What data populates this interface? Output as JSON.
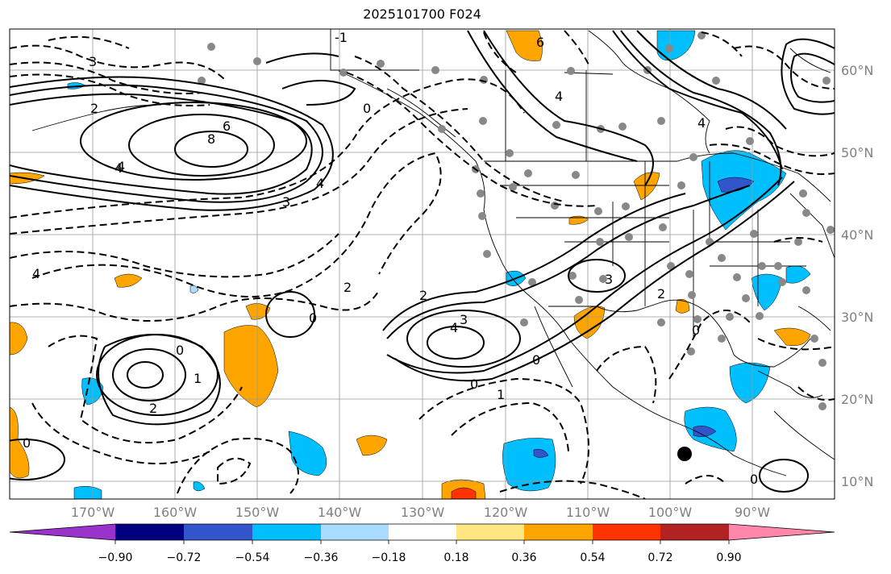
{
  "title": "2025101700 F024",
  "latitude_labels": [
    "60°N",
    "50°N",
    "40°N",
    "30°N",
    "20°N",
    "10°N"
  ],
  "longitude_labels": [
    "170°W",
    "160°W",
    "150°W",
    "140°W",
    "130°W",
    "120°W",
    "110°W",
    "100°W",
    "90°W"
  ],
  "colorbar": {
    "tick_labels": [
      "−0.90",
      "−0.72",
      "−0.54",
      "−0.36",
      "−0.18",
      "0.18",
      "0.36",
      "0.54",
      "0.72",
      "0.90"
    ],
    "colors": [
      "#9933cc",
      "#000080",
      "#3355cc",
      "#00bfff",
      "#aadcff",
      "#ffffff",
      "#ffe680",
      "#ffa500",
      "#ff3300",
      "#b22222",
      "#ff88aa"
    ]
  },
  "contour_labels": [
    {
      "text": "8"
    },
    {
      "text": "6"
    },
    {
      "text": "4"
    },
    {
      "text": "2"
    },
    {
      "text": "0"
    },
    {
      "text": "4"
    },
    {
      "text": "3"
    },
    {
      "text": "4"
    },
    {
      "text": "2"
    },
    {
      "text": "0"
    },
    {
      "text": "-1"
    },
    {
      "text": "4"
    },
    {
      "text": "2"
    },
    {
      "text": "0"
    },
    {
      "text": "3"
    },
    {
      "text": "2"
    },
    {
      "text": "0"
    },
    {
      "text": "1"
    },
    {
      "text": "0"
    },
    {
      "text": "6"
    },
    {
      "text": "4"
    },
    {
      "text": "3"
    },
    {
      "text": "4"
    },
    {
      "text": "4"
    },
    {
      "text": "0"
    },
    {
      "text": "2"
    },
    {
      "text": "0"
    },
    {
      "text": "1"
    },
    {
      "text": "0"
    },
    {
      "text": "3"
    }
  ]
}
